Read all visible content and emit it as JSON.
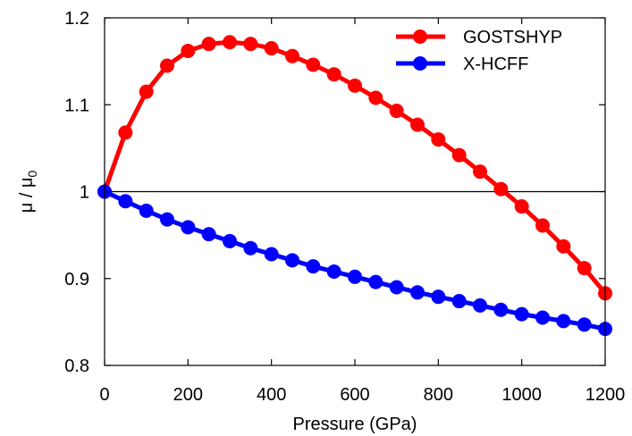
{
  "chart_data": {
    "type": "line",
    "xlabel": "Pressure (GPa)",
    "ylabel": "μ / μ",
    "ylabel_subscript": "0",
    "xlim": [
      0,
      1200
    ],
    "ylim": [
      0.8,
      1.2
    ],
    "xticks": [
      0,
      200,
      400,
      600,
      800,
      1000,
      1200
    ],
    "yticks": [
      0.8,
      0.9,
      1.0,
      1.1,
      1.2
    ],
    "xtick_labels": [
      "0",
      "200",
      "400",
      "600",
      "800",
      "1000",
      "1200"
    ],
    "ytick_labels": [
      "0.8",
      "0.9",
      "1",
      "1.1",
      "1.2"
    ],
    "reference_line_y": 1.0,
    "grid": false,
    "legend_position": "top-right",
    "x": [
      0,
      50,
      100,
      150,
      200,
      250,
      300,
      350,
      400,
      450,
      500,
      550,
      600,
      650,
      700,
      750,
      800,
      850,
      900,
      950,
      1000,
      1050,
      1100,
      1150,
      1200
    ],
    "series": [
      {
        "name": "GOSTSHYP",
        "color": "#ff0000",
        "values": [
          1.0,
          1.068,
          1.115,
          1.145,
          1.162,
          1.17,
          1.172,
          1.17,
          1.165,
          1.156,
          1.146,
          1.135,
          1.122,
          1.108,
          1.093,
          1.077,
          1.06,
          1.042,
          1.023,
          1.003,
          0.983,
          0.961,
          0.937,
          0.912,
          0.883
        ]
      },
      {
        "name": "X-HCFF",
        "color": "#0000ff",
        "values": [
          1.0,
          0.989,
          0.978,
          0.968,
          0.959,
          0.951,
          0.943,
          0.935,
          0.928,
          0.921,
          0.914,
          0.908,
          0.902,
          0.896,
          0.89,
          0.884,
          0.879,
          0.874,
          0.869,
          0.864,
          0.859,
          0.855,
          0.851,
          0.847,
          0.842
        ]
      }
    ]
  }
}
